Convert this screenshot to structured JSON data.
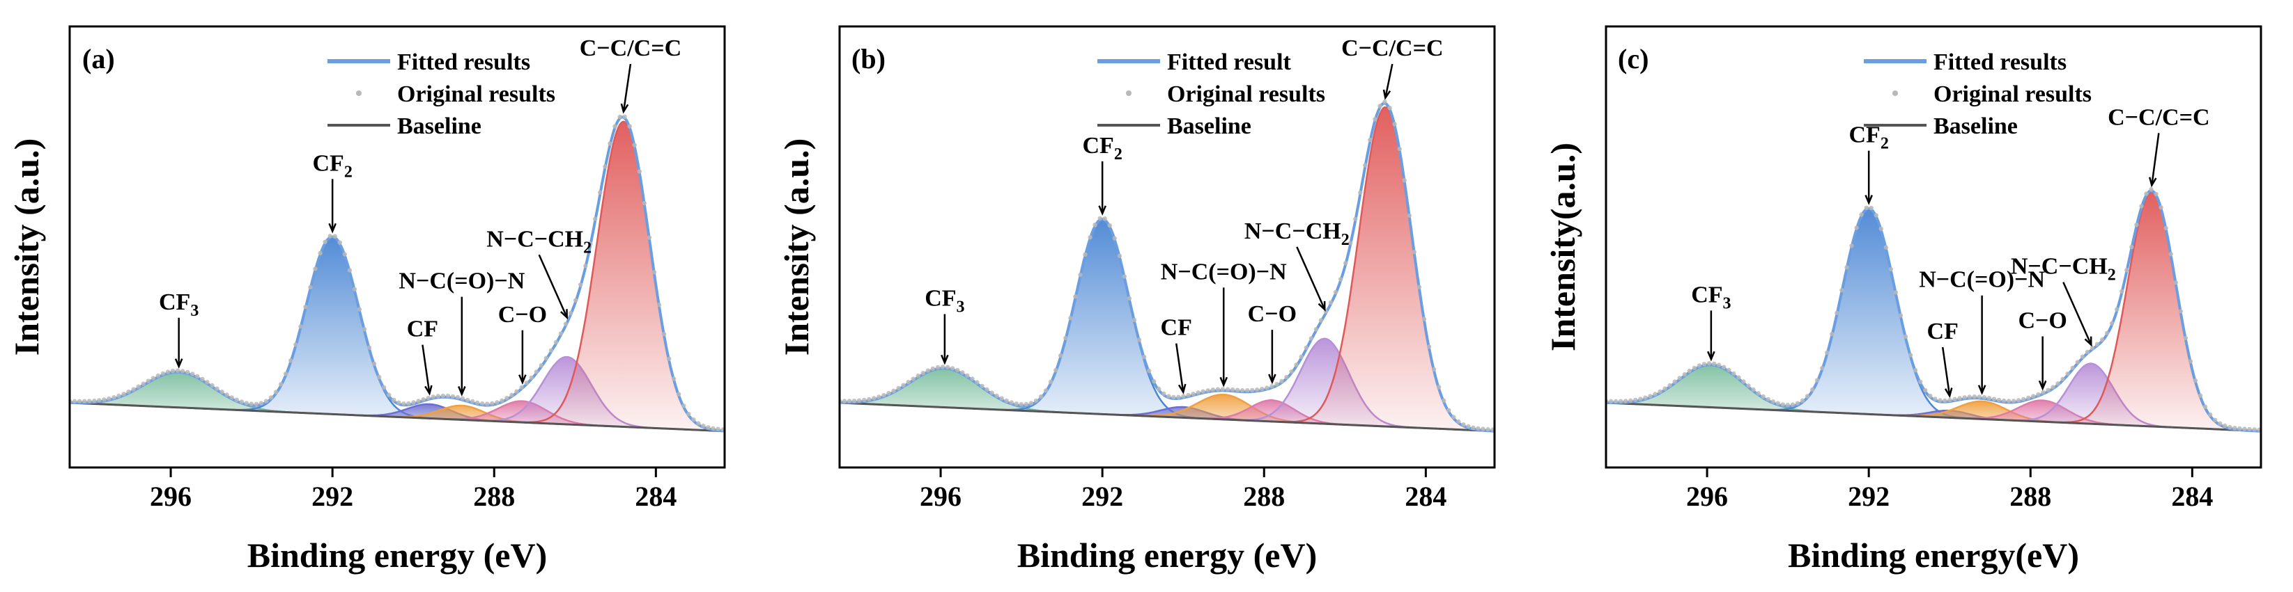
{
  "chart_data": [
    {
      "panel": "(a)",
      "type": "line",
      "xlabel": "Binding energy (eV)",
      "ylabel": "Intensity (a.u.)",
      "xlim": [
        298.5,
        282.3
      ],
      "xticks": [
        296,
        292,
        288,
        284
      ],
      "legend": [
        "Fitted results",
        "Original results",
        "Baseline"
      ],
      "baseline": [
        0.02,
        0.1
      ],
      "peaks": [
        {
          "name": "CF3",
          "center": 295.8,
          "height": 0.1,
          "sigma": 0.85,
          "color": "#7dbfa0"
        },
        {
          "name": "CF2",
          "center": 292.0,
          "height": 0.5,
          "sigma": 0.65,
          "color": "#4a86d4"
        },
        {
          "name": "CF",
          "center": 289.6,
          "height": 0.04,
          "sigma": 0.55,
          "color": "#6c6fd0"
        },
        {
          "name": "N-C(=O)-N",
          "center": 288.8,
          "height": 0.04,
          "sigma": 0.55,
          "color": "#f0a040"
        },
        {
          "name": "C-O",
          "center": 287.3,
          "height": 0.06,
          "sigma": 0.6,
          "color": "#e07aa8"
        },
        {
          "name": "N-C-CH2",
          "center": 286.2,
          "height": 0.19,
          "sigma": 0.6,
          "color": "#b890d8"
        },
        {
          "name": "C-C/C=C",
          "center": 284.8,
          "height": 0.86,
          "sigma": 0.65,
          "color": "#e05858"
        }
      ],
      "annotations": [
        {
          "text": "CF3",
          "x": 295.8
        },
        {
          "text": "CF2",
          "x": 292.0
        },
        {
          "text": "CF",
          "x": 289.6
        },
        {
          "text": "N-C(=O)-N",
          "x": 288.8
        },
        {
          "text": "C-O",
          "x": 287.3
        },
        {
          "text": "N-C-CH2",
          "x": 286.2
        },
        {
          "text": "C-C/C=C",
          "x": 284.8
        }
      ]
    },
    {
      "panel": "(b)",
      "type": "line",
      "xlabel": "Binding energy (eV)",
      "ylabel": "Intensity (a.u.)",
      "xlim": [
        298.5,
        282.3
      ],
      "xticks": [
        296,
        292,
        288,
        284
      ],
      "legend": [
        "Fitted result",
        "Original results",
        "Baseline"
      ],
      "baseline": [
        0.02,
        0.1
      ],
      "peaks": [
        {
          "name": "CF3",
          "center": 295.9,
          "height": 0.11,
          "sigma": 0.85,
          "color": "#7dbfa0"
        },
        {
          "name": "CF2",
          "center": 292.0,
          "height": 0.55,
          "sigma": 0.65,
          "color": "#4a86d4"
        },
        {
          "name": "CF",
          "center": 290.0,
          "height": 0.03,
          "sigma": 0.55,
          "color": "#6c6fd0"
        },
        {
          "name": "N-C(=O)-N",
          "center": 289.0,
          "height": 0.07,
          "sigma": 0.65,
          "color": "#f0a040"
        },
        {
          "name": "C-O",
          "center": 287.8,
          "height": 0.06,
          "sigma": 0.55,
          "color": "#e07aa8"
        },
        {
          "name": "N-C-CH2",
          "center": 286.5,
          "height": 0.24,
          "sigma": 0.6,
          "color": "#b890d8"
        },
        {
          "name": "C-C/C=C",
          "center": 285.0,
          "height": 0.9,
          "sigma": 0.65,
          "color": "#e05858"
        }
      ],
      "annotations": [
        {
          "text": "CF3",
          "x": 295.9
        },
        {
          "text": "CF2",
          "x": 292.0
        },
        {
          "text": "CF",
          "x": 290.0
        },
        {
          "text": "N-C(=O)-N",
          "x": 289.0
        },
        {
          "text": "C-O",
          "x": 287.8
        },
        {
          "text": "N-C-CH2",
          "x": 286.5
        },
        {
          "text": "C-C/C=C",
          "x": 285.0
        }
      ]
    },
    {
      "panel": "(c)",
      "type": "line",
      "xlabel": "Binding energy(eV)",
      "ylabel": "Intensity(a.u.)",
      "xlim": [
        298.5,
        282.3
      ],
      "xticks": [
        296,
        292,
        288,
        284
      ],
      "legend": [
        "Fitted results",
        "Original results",
        "Baseline"
      ],
      "baseline": [
        0.02,
        0.1
      ],
      "peaks": [
        {
          "name": "CF3",
          "center": 295.9,
          "height": 0.12,
          "sigma": 0.8,
          "color": "#7dbfa0"
        },
        {
          "name": "CF2",
          "center": 292.0,
          "height": 0.58,
          "sigma": 0.65,
          "color": "#4a86d4"
        },
        {
          "name": "CF",
          "center": 290.0,
          "height": 0.02,
          "sigma": 0.5,
          "color": "#6c6fd0"
        },
        {
          "name": "N-C(=O)-N",
          "center": 289.2,
          "height": 0.05,
          "sigma": 0.6,
          "color": "#f0a040"
        },
        {
          "name": "C-O",
          "center": 287.7,
          "height": 0.06,
          "sigma": 0.6,
          "color": "#e07aa8"
        },
        {
          "name": "N-C-CH2",
          "center": 286.5,
          "height": 0.17,
          "sigma": 0.55,
          "color": "#b890d8"
        },
        {
          "name": "C-C/C=C",
          "center": 285.0,
          "height": 0.66,
          "sigma": 0.6,
          "color": "#e05858"
        }
      ],
      "annotations": [
        {
          "text": "CF3",
          "x": 295.9
        },
        {
          "text": "CF2",
          "x": 292.0
        },
        {
          "text": "CF",
          "x": 290.0
        },
        {
          "text": "N-C(=O)-N",
          "x": 289.2
        },
        {
          "text": "C-O",
          "x": 287.7
        },
        {
          "text": "N-C-CH2",
          "x": 286.5
        },
        {
          "text": "C-C/C=C",
          "x": 285.0
        }
      ]
    }
  ],
  "colors": {
    "fitted": "#6a9ee0",
    "original": "#b8b8b8",
    "baseline": "#555555"
  }
}
